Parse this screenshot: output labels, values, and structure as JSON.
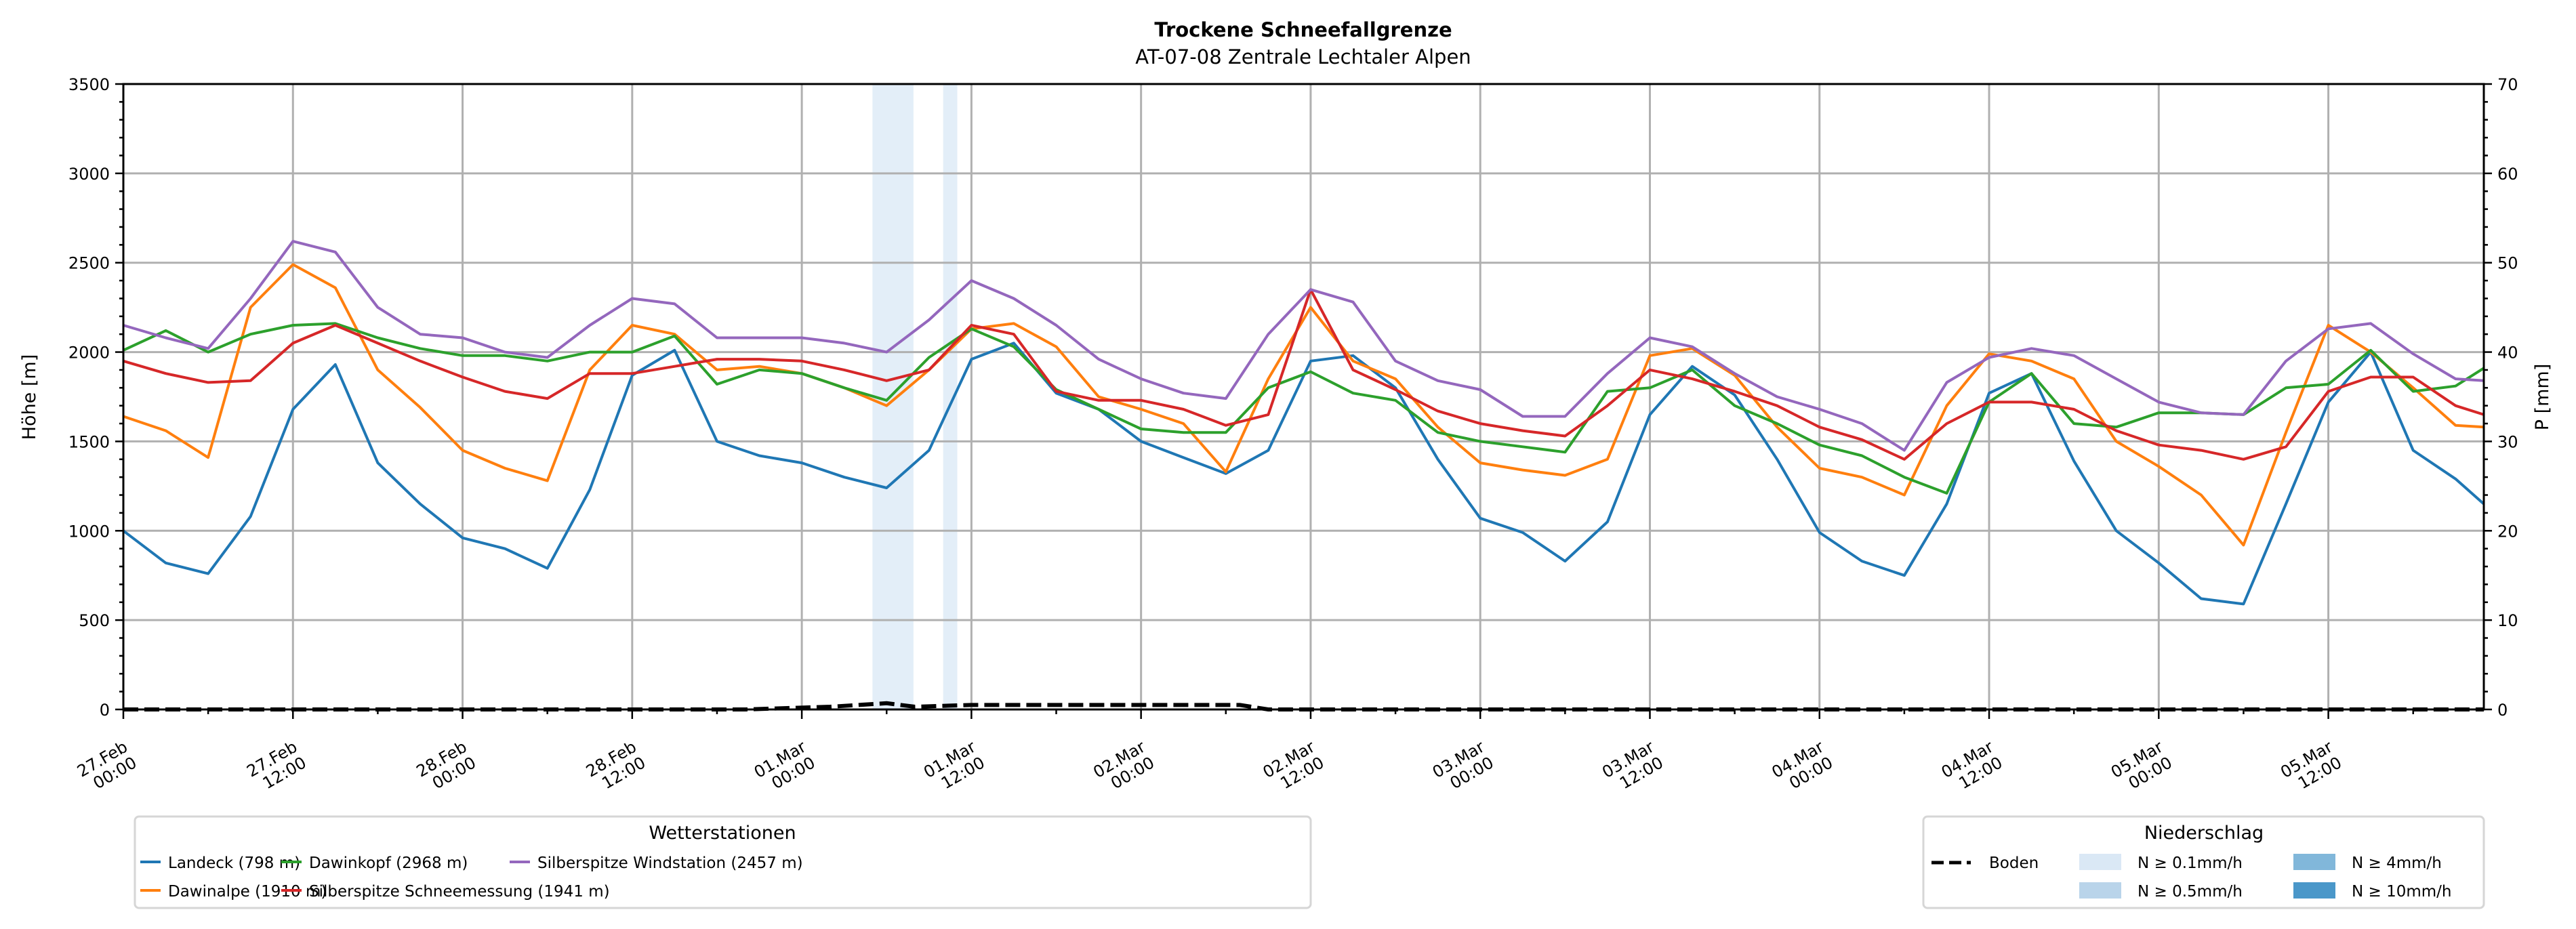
{
  "chart_data": {
    "type": "line",
    "title": "Trockene Schneefallgrenze",
    "subtitle": "AT-07-08 Zentrale Lechtaler Alpen",
    "ylabel": "Höhe [m]",
    "ylabel_right": "P [mm]",
    "ylim": [
      0,
      3500
    ],
    "ylim_right": [
      0,
      70
    ],
    "yticks": [
      0,
      500,
      1000,
      1500,
      2000,
      2500,
      3000,
      3500
    ],
    "yticks_right": [
      0,
      10,
      20,
      30,
      40,
      50,
      60,
      70
    ],
    "grid": true,
    "x_unit": "hours since 27.Feb 00:00",
    "xlim_hours": [
      0,
      167
    ],
    "time_step_hours": 3,
    "x_last_hours": 167,
    "xtick_labels": [
      [
        "27.Feb",
        "00:00"
      ],
      [
        "27.Feb",
        "12:00"
      ],
      [
        "28.Feb",
        "00:00"
      ],
      [
        "28.Feb",
        "12:00"
      ],
      [
        "01.Mar",
        "00:00"
      ],
      [
        "01.Mar",
        "12:00"
      ],
      [
        "02.Mar",
        "00:00"
      ],
      [
        "02.Mar",
        "12:00"
      ],
      [
        "03.Mar",
        "00:00"
      ],
      [
        "03.Mar",
        "12:00"
      ],
      [
        "04.Mar",
        "00:00"
      ],
      [
        "04.Mar",
        "12:00"
      ],
      [
        "05.Mar",
        "00:00"
      ],
      [
        "05.Mar",
        "12:00"
      ]
    ],
    "xtick_step_hours": 12,
    "series": [
      {
        "name": "Landeck (798 m)",
        "color": "#1f77b4",
        "values": [
          1000,
          820,
          760,
          1080,
          1680,
          1930,
          1380,
          1150,
          960,
          900,
          790,
          1230,
          1870,
          2010,
          1500,
          1420,
          1380,
          1300,
          1240,
          1450,
          1960,
          2050,
          1770,
          1680,
          1500,
          1410,
          1320,
          1450,
          1950,
          1980,
          1800,
          1400,
          1070,
          990,
          830,
          1050,
          1650,
          1920,
          1760,
          1400,
          990,
          830,
          750,
          1150,
          1770,
          1880,
          1390,
          1000,
          820,
          620,
          590,
          1150,
          1720,
          2000,
          1450,
          1290,
          1150
        ]
      },
      {
        "name": "Dawinalpe (1910 m)",
        "color": "#ff7f0e",
        "values": [
          1640,
          1560,
          1410,
          2250,
          2490,
          2360,
          1900,
          1690,
          1450,
          1350,
          1280,
          1900,
          2150,
          2100,
          1900,
          1920,
          1880,
          1800,
          1700,
          1900,
          2130,
          2160,
          2030,
          1750,
          1680,
          1600,
          1330,
          1850,
          2250,
          1950,
          1850,
          1580,
          1380,
          1340,
          1310,
          1400,
          1980,
          2020,
          1870,
          1580,
          1350,
          1300,
          1200,
          1700,
          1990,
          1950,
          1850,
          1500,
          1360,
          1200,
          920,
          1550,
          2150,
          2000,
          1800,
          1590,
          1580
        ]
      },
      {
        "name": "Dawinkopf (2968 m)",
        "color": "#2ca02c",
        "values": [
          2010,
          2120,
          2000,
          2100,
          2150,
          2160,
          2080,
          2020,
          1980,
          1980,
          1950,
          2000,
          2000,
          2090,
          1820,
          1900,
          1880,
          1800,
          1730,
          1970,
          2130,
          2030,
          1790,
          1680,
          1570,
          1550,
          1550,
          1800,
          1890,
          1770,
          1730,
          1550,
          1500,
          1470,
          1440,
          1780,
          1800,
          1900,
          1700,
          1600,
          1480,
          1420,
          1300,
          1210,
          1720,
          1880,
          1600,
          1580,
          1660,
          1660,
          1650,
          1800,
          1820,
          2010,
          1780,
          1810,
          1910
        ]
      },
      {
        "name": "Silberspitze Schneemessung (1941 m)",
        "color": "#d62728",
        "values": [
          1950,
          1880,
          1830,
          1840,
          2050,
          2150,
          2050,
          1950,
          1860,
          1780,
          1740,
          1880,
          1880,
          1920,
          1960,
          1960,
          1950,
          1900,
          1840,
          1900,
          2150,
          2100,
          1780,
          1730,
          1730,
          1680,
          1590,
          1650,
          2350,
          1900,
          1790,
          1670,
          1600,
          1560,
          1530,
          1700,
          1900,
          1850,
          1780,
          1700,
          1580,
          1510,
          1400,
          1600,
          1720,
          1720,
          1680,
          1560,
          1480,
          1450,
          1400,
          1470,
          1780,
          1860,
          1860,
          1700,
          1650
        ]
      },
      {
        "name": "Silberspitze Windstation (2457 m)",
        "color": "#9467bd",
        "values": [
          2150,
          2080,
          2020,
          2300,
          2620,
          2560,
          2250,
          2100,
          2080,
          2000,
          1970,
          2150,
          2300,
          2270,
          2080,
          2080,
          2080,
          2050,
          2000,
          2180,
          2400,
          2300,
          2150,
          1960,
          1850,
          1770,
          1740,
          2100,
          2350,
          2280,
          1950,
          1840,
          1790,
          1640,
          1640,
          1880,
          2080,
          2030,
          1880,
          1750,
          1680,
          1600,
          1450,
          1830,
          1970,
          2020,
          1980,
          1850,
          1720,
          1660,
          1650,
          1950,
          2130,
          2160,
          1990,
          1850,
          1840
        ]
      }
    ],
    "boden": {
      "name": "Boden",
      "color": "#000000",
      "points": [
        [
          0,
          0
        ],
        [
          44,
          0
        ],
        [
          50,
          15
        ],
        [
          54,
          35
        ],
        [
          56,
          15
        ],
        [
          60,
          25
        ],
        [
          79,
          25
        ],
        [
          81,
          0
        ],
        [
          167,
          0
        ]
      ]
    },
    "precip_periods": [
      {
        "start_hours": 53.0,
        "end_hours": 55.9,
        "class": "N ≥ 0.1mm/h"
      },
      {
        "start_hours": 58.0,
        "end_hours": 59.0,
        "class": "N ≥ 0.1mm/h"
      }
    ],
    "legend_stations": {
      "title": "Wetterstationen",
      "placement": "bottom-left"
    },
    "legend_precip": {
      "title": "Niederschlag",
      "placement": "bottom-right",
      "boden_label": "Boden",
      "classes": [
        {
          "label": "N ≥ 0.1mm/h",
          "color": "#dae8f5"
        },
        {
          "label": "N ≥ 0.5mm/h",
          "color": "#b9d4ea"
        },
        {
          "label": "N ≥ 4mm/h",
          "color": "#81b7da"
        },
        {
          "label": "N ≥ 10mm/h",
          "color": "#4a97c9"
        }
      ]
    }
  }
}
